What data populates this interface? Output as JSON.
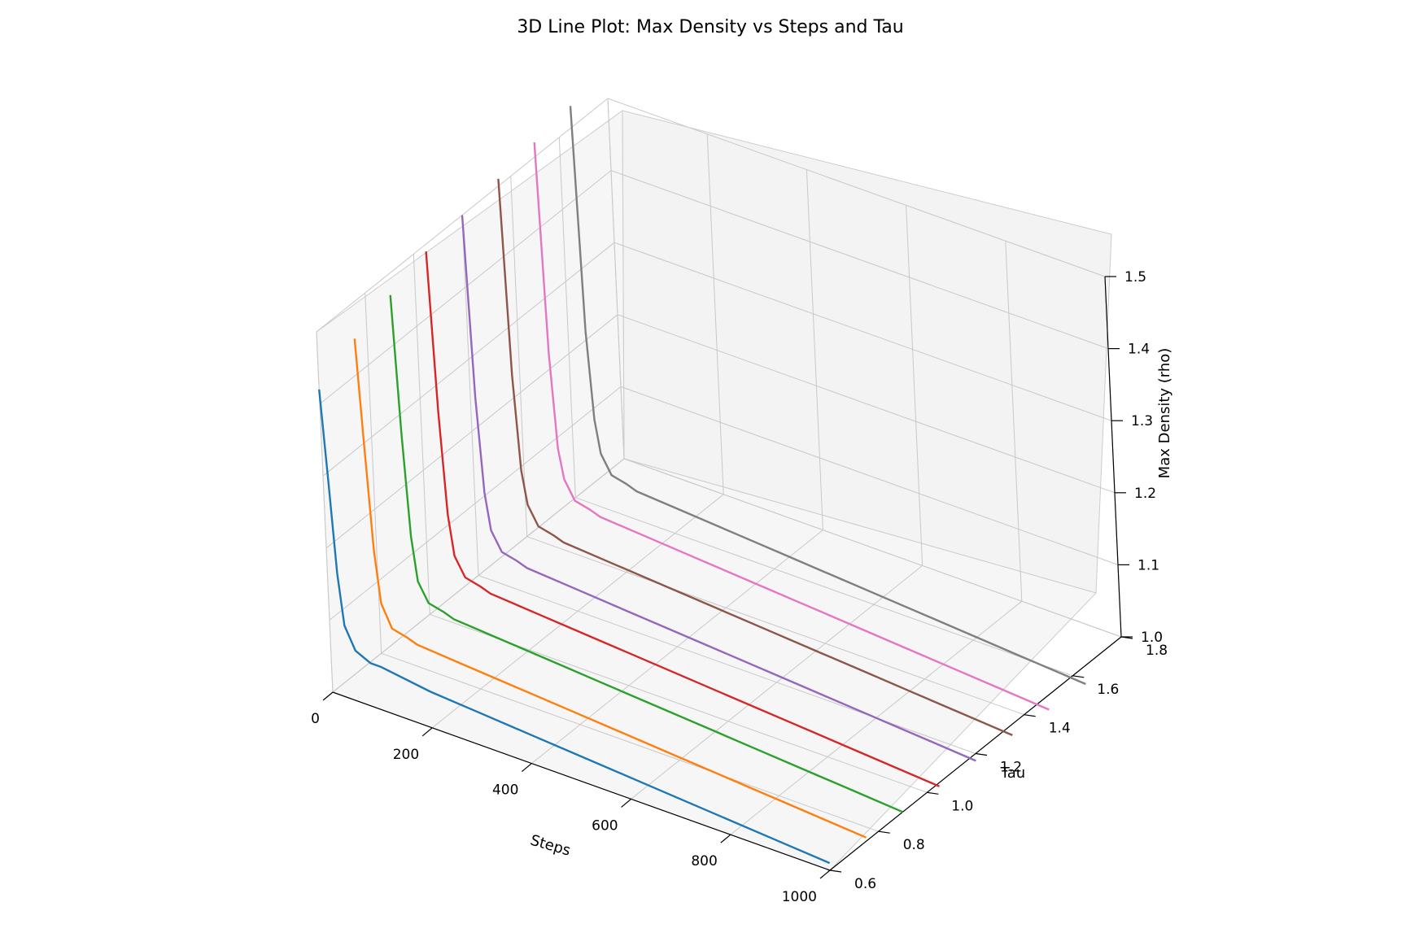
{
  "chart_data": {
    "type": "line",
    "projection": "3d",
    "title": "3D Line Plot: Max Density vs Steps and Tau",
    "xlabel": "Steps",
    "ylabel": "Tau",
    "zlabel": "Max Density (rho)",
    "xlim": [
      0,
      1000
    ],
    "ylim": [
      0.6,
      1.8
    ],
    "zlim": [
      1.0,
      1.5
    ],
    "x_ticks": [
      "0",
      "200",
      "400",
      "600",
      "800",
      "1000"
    ],
    "y_ticks": [
      "0.6",
      "0.8",
      "1.0",
      "1.2",
      "1.4",
      "1.6",
      "1.8"
    ],
    "z_ticks": [
      "1.0",
      "1.1",
      "1.2",
      "1.3",
      "1.4",
      "1.5"
    ],
    "grid": true,
    "legend": "none",
    "series": [
      {
        "tau": 0.6,
        "color": "#1f77b4",
        "x": [
          0,
          10,
          20,
          30,
          50,
          80,
          100,
          200,
          300,
          400,
          500,
          600,
          700,
          800,
          900,
          1000
        ],
        "z": [
          1.42,
          1.3,
          1.17,
          1.1,
          1.07,
          1.06,
          1.06,
          1.05,
          1.045,
          1.04,
          1.035,
          1.03,
          1.025,
          1.02,
          1.015,
          1.01
        ]
      },
      {
        "tau": 0.75,
        "color": "#ff7f0e",
        "x": [
          0,
          10,
          20,
          30,
          50,
          80,
          100,
          200,
          300,
          400,
          500,
          600,
          700,
          800,
          900,
          1000
        ],
        "z": [
          1.45,
          1.3,
          1.16,
          1.09,
          1.06,
          1.055,
          1.05,
          1.045,
          1.04,
          1.035,
          1.03,
          1.025,
          1.02,
          1.015,
          1.01,
          1.005
        ]
      },
      {
        "tau": 0.9,
        "color": "#2ca02c",
        "x": [
          0,
          10,
          20,
          30,
          50,
          80,
          100,
          200,
          300,
          400,
          500,
          600,
          700,
          800,
          900,
          1000
        ],
        "z": [
          1.47,
          1.28,
          1.14,
          1.08,
          1.055,
          1.05,
          1.045,
          1.04,
          1.035,
          1.03,
          1.025,
          1.02,
          1.015,
          1.01,
          1.005,
          1.0
        ]
      },
      {
        "tau": 1.05,
        "color": "#d62728",
        "x": [
          0,
          10,
          20,
          30,
          50,
          80,
          100,
          200,
          300,
          400,
          500,
          600,
          700,
          800,
          900,
          1000
        ],
        "z": [
          1.49,
          1.27,
          1.13,
          1.075,
          1.05,
          1.045,
          1.04,
          1.035,
          1.03,
          1.025,
          1.02,
          1.015,
          1.01,
          1.005,
          1.0,
          0.995
        ]
      },
      {
        "tau": 1.2,
        "color": "#9467bd",
        "x": [
          0,
          10,
          20,
          30,
          50,
          80,
          100,
          200,
          300,
          400,
          500,
          600,
          700,
          800,
          900,
          1000
        ],
        "z": [
          1.5,
          1.25,
          1.12,
          1.07,
          1.045,
          1.04,
          1.035,
          1.03,
          1.025,
          1.02,
          1.015,
          1.01,
          1.005,
          1.0,
          0.995,
          0.99
        ]
      },
      {
        "tau": 1.35,
        "color": "#8c564b",
        "x": [
          0,
          10,
          20,
          30,
          50,
          80,
          100,
          200,
          300,
          400,
          500,
          600,
          700,
          800,
          900,
          1000
        ],
        "z": [
          1.51,
          1.24,
          1.11,
          1.065,
          1.04,
          1.035,
          1.03,
          1.025,
          1.02,
          1.015,
          1.01,
          1.005,
          1.0,
          0.995,
          0.99,
          0.985
        ]
      },
      {
        "tau": 1.5,
        "color": "#e377c2",
        "x": [
          0,
          10,
          20,
          30,
          50,
          80,
          100,
          200,
          300,
          400,
          500,
          600,
          700,
          800,
          900,
          1000
        ],
        "z": [
          1.52,
          1.23,
          1.1,
          1.06,
          1.035,
          1.03,
          1.025,
          1.02,
          1.015,
          1.01,
          1.005,
          1.0,
          0.995,
          0.99,
          0.985,
          0.98
        ]
      },
      {
        "tau": 1.65,
        "color": "#7f7f7f",
        "x": [
          0,
          10,
          20,
          30,
          50,
          80,
          100,
          200,
          300,
          400,
          500,
          600,
          700,
          800,
          900,
          1000
        ],
        "z": [
          1.53,
          1.22,
          1.1,
          1.055,
          1.03,
          1.025,
          1.02,
          1.015,
          1.01,
          1.005,
          1.0,
          0.995,
          0.99,
          0.985,
          0.98,
          0.975
        ]
      }
    ]
  }
}
